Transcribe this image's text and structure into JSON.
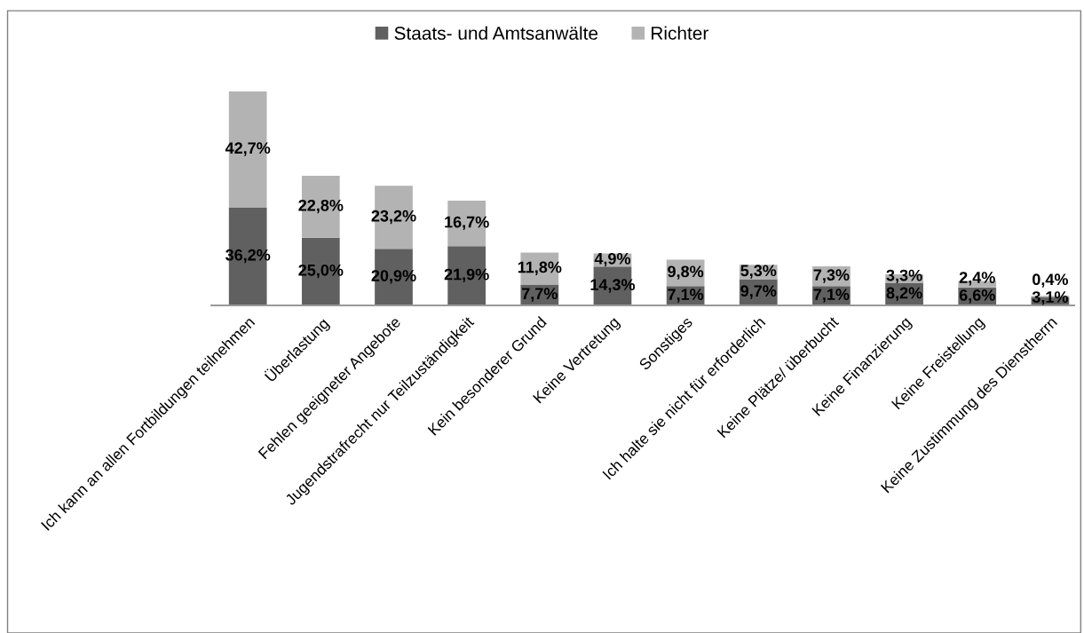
{
  "chart_data": {
    "type": "bar",
    "stacked": true,
    "legend": "top",
    "grid": false,
    "categories": [
      "Ich kann an allen Fortbildungen teilnehmen",
      "Überlastung",
      "Fehlen geeigneter Angebote",
      "Jugendstrafrecht nur Teilzuständigkeit",
      "Kein besonderer Grund",
      "Keine Vertretung",
      "Sonstiges",
      "Ich halte sie nicht für erforderlich",
      "Keine Plätze/ überbucht",
      "Keine Finanzierung",
      "Keine Freistellung",
      "Keine Zustimmung des Dienstherrn"
    ],
    "series": [
      {
        "name": "Staats- und Amtsanwälte",
        "color": "#606060",
        "values": [
          36.2,
          25.0,
          20.9,
          21.9,
          7.7,
          14.3,
          7.1,
          9.7,
          7.1,
          8.2,
          6.6,
          3.1
        ],
        "value_labels": [
          "36,2%",
          "25,0%",
          "20,9%",
          "21,9%",
          "7,7%",
          "14,3%",
          "7,1%",
          "9,7%",
          "7,1%",
          "8,2%",
          "6,6%",
          "3,1%"
        ]
      },
      {
        "name": "Richter",
        "color": "#b3b3b3",
        "values": [
          42.7,
          22.8,
          23.2,
          16.7,
          11.8,
          4.9,
          9.8,
          5.3,
          7.3,
          3.3,
          2.4,
          0.4
        ],
        "value_labels": [
          "42,7%",
          "22,8%",
          "23,2%",
          "16,7%",
          "11,8%",
          "4,9%",
          "9,8%",
          "5,3%",
          "7,3%",
          "3,3%",
          "2,4%",
          "0,4%"
        ]
      }
    ]
  }
}
